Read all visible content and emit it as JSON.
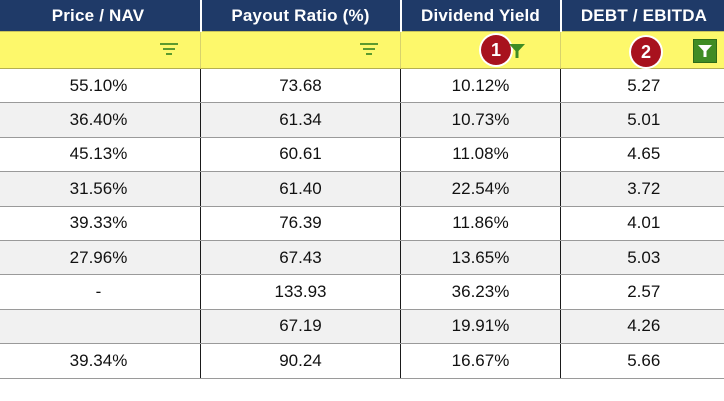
{
  "columns": [
    "Price / NAV",
    "Payout Ratio (%)",
    "Dividend Yield",
    "DEBT / EBITDA"
  ],
  "badges": {
    "dividend_yield": "1",
    "debt_ebitda": "2"
  },
  "icons": {
    "col1_filter": "sort-filter-icon",
    "col2_filter": "sort-filter-icon",
    "col3_filter": "funnel-active-icon",
    "col4_filter": "funnel-boxed-active-icon"
  },
  "colors": {
    "header_bg": "#1f3a68",
    "filter_row_bg": "#fdf86b",
    "filter_icon": "#5c9a2e",
    "badge": "#a8121e"
  },
  "rows": [
    [
      "55.10%",
      "73.68",
      "10.12%",
      "5.27"
    ],
    [
      "36.40%",
      "61.34",
      "10.73%",
      "5.01"
    ],
    [
      "45.13%",
      "60.61",
      "11.08%",
      "4.65"
    ],
    [
      "31.56%",
      "61.40",
      "22.54%",
      "3.72"
    ],
    [
      "39.33%",
      "76.39",
      "11.86%",
      "4.01"
    ],
    [
      "27.96%",
      "67.43",
      "13.65%",
      "5.03"
    ],
    [
      "-",
      "133.93",
      "36.23%",
      "2.57"
    ],
    [
      "",
      "67.19",
      "19.91%",
      "4.26"
    ],
    [
      "39.34%",
      "90.24",
      "16.67%",
      "5.66"
    ]
  ]
}
